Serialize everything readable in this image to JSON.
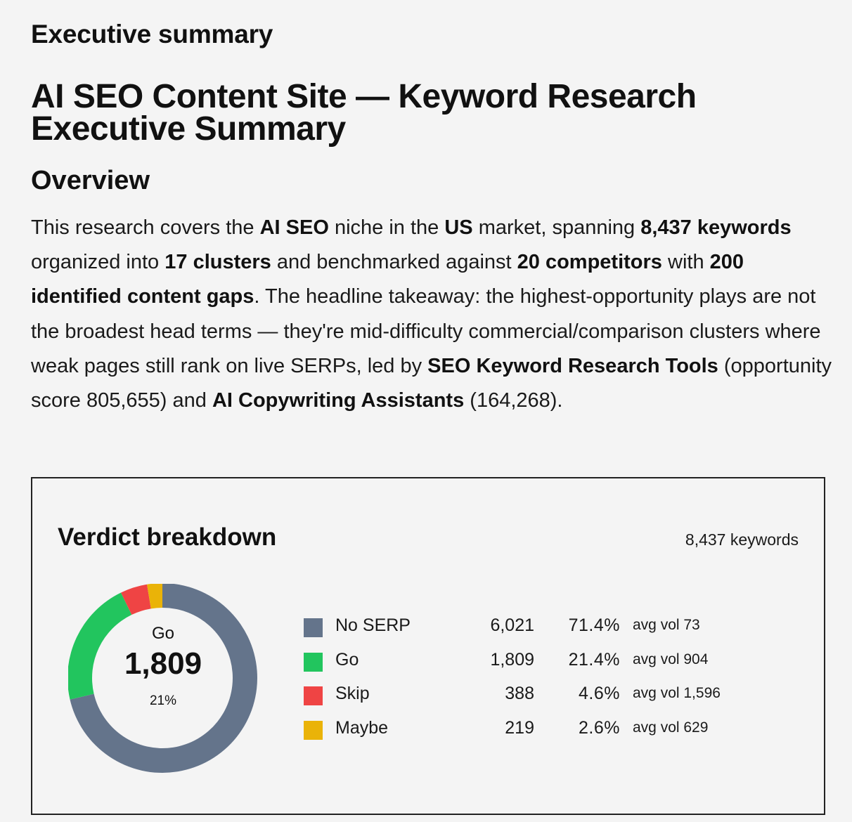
{
  "section_label": "Executive summary",
  "doc_title": "AI SEO Content Site — Keyword Research Executive Summary",
  "overview": {
    "heading": "Overview",
    "paragraph": [
      {
        "t": "This research covers the "
      },
      {
        "t": "AI SEO",
        "b": true
      },
      {
        "t": " niche in the "
      },
      {
        "t": "US",
        "b": true
      },
      {
        "t": " market, spanning "
      },
      {
        "t": "8,437 keywords",
        "b": true
      },
      {
        "t": " organized into "
      },
      {
        "t": "17 clusters",
        "b": true
      },
      {
        "t": " and benchmarked against "
      },
      {
        "t": "20 competitors",
        "b": true
      },
      {
        "t": " with "
      },
      {
        "t": "200 identified content gaps",
        "b": true
      },
      {
        "t": ". The headline takeaway: the highest-opportunity plays are not the broadest head terms — they're mid-difficulty commercial/comparison clusters where weak pages still rank on live SERPs, led by "
      },
      {
        "t": "SEO Keyword Research Tools",
        "b": true
      },
      {
        "t": " (opportunity score 805,655) and "
      },
      {
        "t": "AI Copywriting Assistants",
        "b": true
      },
      {
        "t": " (164,268)."
      }
    ]
  },
  "verdict": {
    "title": "Verdict breakdown",
    "total_label": "8,437 keywords",
    "center": {
      "label": "Go",
      "value": "1,809",
      "pct": "21%"
    },
    "items": [
      {
        "name": "No SERP",
        "count": "6,021",
        "count_value": 6021,
        "pct": "71.4%",
        "avg": "avg vol 73",
        "color": "#64748b"
      },
      {
        "name": "Go",
        "count": "1,809",
        "count_value": 1809,
        "pct": "21.4%",
        "avg": "avg vol 904",
        "color": "#22c55e"
      },
      {
        "name": "Skip",
        "count": "388",
        "count_value": 388,
        "pct": "4.6%",
        "avg": "avg vol 1,596",
        "color": "#ef4444"
      },
      {
        "name": "Maybe",
        "count": "219",
        "count_value": 219,
        "pct": "2.6%",
        "avg": "avg vol 629",
        "color": "#eab308"
      }
    ]
  }
}
